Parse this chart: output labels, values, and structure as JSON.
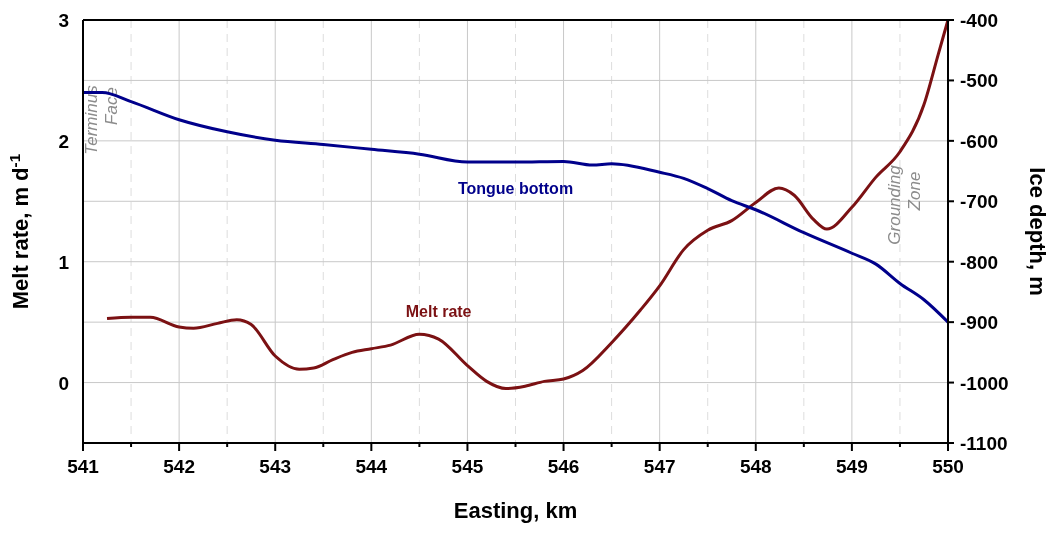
{
  "chart_data": {
    "type": "line",
    "xlabel": "Easting, km",
    "ylabel": "Melt rate, m d$^{-1}$",
    "y2label": "Ice depth, m",
    "xlim": [
      541,
      550
    ],
    "xticks": [
      541,
      {
        "value": 541.5,
        "label": null
      },
      542,
      {
        "value": 542.5,
        "label": null
      },
      543,
      {
        "value": 543.5,
        "label": null
      },
      544,
      {
        "value": 544.5,
        "label": null
      },
      545,
      {
        "value": 545.5,
        "label": null
      },
      546,
      {
        "value": 546.5,
        "label": null
      },
      547,
      {
        "value": 547.5,
        "label": null
      },
      548,
      {
        "value": 548.5,
        "label": null
      },
      549,
      {
        "value": 549.5,
        "label": null
      },
      550
    ],
    "ylim": [
      -0.5,
      3
    ],
    "yticks": [
      0,
      1,
      2,
      3
    ],
    "y2lim": [
      -1100,
      -400
    ],
    "y2ticks": [
      -1100,
      -1000,
      -900,
      -800,
      -700,
      -600,
      -500,
      -400
    ],
    "grid": true,
    "line_style": "solid",
    "marker": "none",
    "series": [
      {
        "name": "Melt rate",
        "color": "#7b1113",
        "x": [
          541.25,
          541.5,
          541.7,
          542,
          542.15,
          542.4,
          542.6,
          542.75,
          543,
          543.25,
          543.4,
          543.6,
          543.8,
          544,
          544.2,
          544.5,
          544.7,
          545,
          545.2,
          545.4,
          545.6,
          545.8,
          546,
          546.2,
          546.5,
          546.8,
          547,
          547.25,
          547.5,
          547.75,
          548,
          548.24,
          548.4,
          548.6,
          548.74,
          549,
          549.25,
          549.5,
          549.75,
          549.9,
          550
        ],
        "values": [
          0.53,
          0.54,
          0.54,
          0.46,
          0.45,
          0.49,
          0.52,
          0.48,
          0.22,
          0.11,
          0.12,
          0.19,
          0.25,
          0.28,
          0.31,
          0.4,
          0.36,
          0.14,
          0.01,
          -0.05,
          -0.03,
          0.01,
          0.03,
          0.1,
          0.33,
          0.6,
          0.8,
          1.1,
          1.26,
          1.34,
          1.49,
          1.61,
          1.55,
          1.35,
          1.27,
          1.45,
          1.7,
          1.91,
          2.3,
          2.72,
          3.0
        ]
      },
      {
        "name": "Tongue bottom",
        "color": "#00008b",
        "axis": "y2",
        "x": [
          541,
          541.2,
          541.5,
          542,
          542.5,
          543,
          543.5,
          544,
          544.5,
          545,
          545.5,
          546,
          546.3,
          546.5,
          547,
          547.25,
          547.5,
          547.75,
          548,
          548.5,
          549,
          549.25,
          549.5,
          549.75,
          550
        ],
        "values": [
          -520,
          -520,
          -535,
          -565,
          -585,
          -599,
          -606,
          -614,
          -622,
          -635,
          -635,
          -634,
          -640,
          -638,
          -652,
          -662,
          -679,
          -699,
          -714,
          -752,
          -786,
          -804,
          -836,
          -863,
          -900
        ]
      }
    ],
    "annotations": [
      "Terminus Face",
      "Grounding Zone"
    ]
  }
}
